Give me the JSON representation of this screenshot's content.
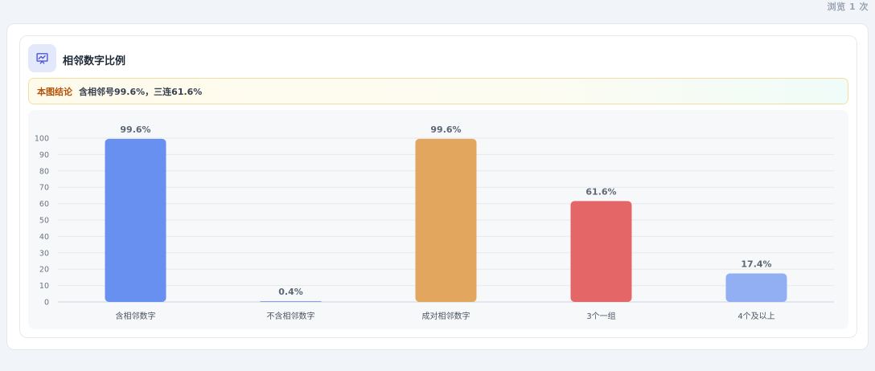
{
  "header": {
    "views": "浏览 1 次"
  },
  "card": {
    "title": "相邻数字比例",
    "icon": "presentation-chart-icon",
    "conclusion_tag": "本图结论",
    "conclusion_text": "含相邻号99.6%，三连61.6%"
  },
  "chart_data": {
    "type": "bar",
    "categories": [
      "含相邻数字",
      "不含相邻数字",
      "成对相邻数字",
      "3个一组",
      "4个及以上"
    ],
    "values": [
      99.6,
      0.4,
      99.6,
      61.6,
      17.4
    ],
    "data_labels": [
      "99.6%",
      "0.4%",
      "99.6%",
      "61.6%",
      "17.4%"
    ],
    "colors": [
      "#6890f0",
      "#6890f0",
      "#e2a65f",
      "#e56667",
      "#92aff3"
    ],
    "ylim": [
      0,
      100
    ],
    "yticks": [
      0,
      10,
      20,
      30,
      40,
      50,
      60,
      70,
      80,
      90,
      100
    ],
    "grid": true
  }
}
